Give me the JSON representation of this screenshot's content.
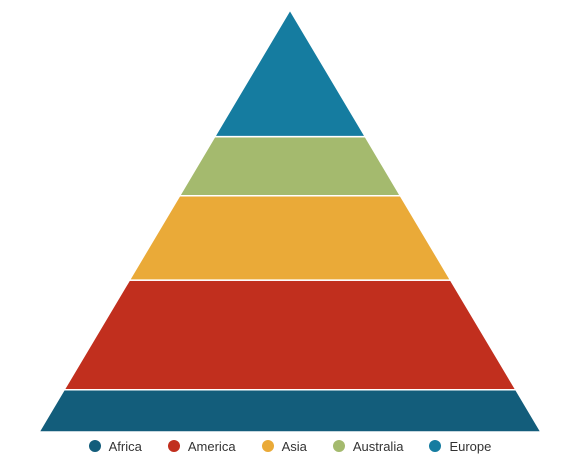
{
  "chart_data": {
    "type": "pyramid",
    "series": [
      {
        "name": "Africa",
        "value": 10,
        "color": "#135d7b"
      },
      {
        "name": "America",
        "value": 26,
        "color": "#c12f1e"
      },
      {
        "name": "Asia",
        "value": 20,
        "color": "#eaaa38"
      },
      {
        "name": "Australia",
        "value": 14,
        "color": "#a4ba6e"
      },
      {
        "name": "Europe",
        "value": 30,
        "color": "#157ca0"
      }
    ],
    "legend_position": "bottom",
    "grid": false
  }
}
